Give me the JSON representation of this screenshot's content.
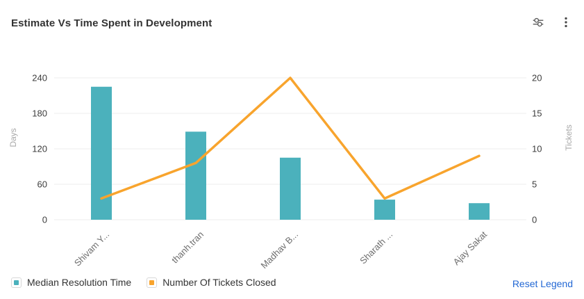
{
  "header": {
    "title": "Estimate Vs Time Spent in Development",
    "icons": [
      {
        "name": "filter-sliders-icon"
      },
      {
        "name": "kebab-menu-icon"
      }
    ]
  },
  "chart_data": {
    "type": "bar+line",
    "title": "Estimate Vs Time Spent in Development",
    "categories": [
      "Shivam Y...",
      "thanh.tran",
      "Madhav B...",
      "Sharath ...",
      "Ajay Sakat"
    ],
    "series": [
      {
        "name": "Median Resolution Time",
        "type": "bar",
        "axis": "left",
        "color": "#4bb1bc",
        "values": [
          225,
          149,
          105,
          34,
          28
        ]
      },
      {
        "name": "Number Of Tickets Closed",
        "type": "line",
        "axis": "right",
        "color": "#f8a42d",
        "values": [
          3,
          8,
          20,
          3,
          9
        ]
      }
    ],
    "left_axis": {
      "label": "Days",
      "min": 0,
      "max": 240,
      "ticks": [
        0,
        60,
        120,
        180,
        240
      ]
    },
    "right_axis": {
      "label": "Tickets",
      "min": 0,
      "max": 20,
      "ticks": [
        0,
        5,
        10,
        15,
        20
      ]
    },
    "grid": true,
    "legend_position": "bottom-left"
  },
  "legend": {
    "items": [
      {
        "label": "Median Resolution Time",
        "color": "#4bb1bc"
      },
      {
        "label": "Number Of Tickets Closed",
        "color": "#f8a42d"
      }
    ],
    "reset_label": "Reset Legend"
  },
  "colors": {
    "bar": "#4bb1bc",
    "line": "#f8a42d",
    "link": "#2368d4",
    "title_text": "#333333",
    "axis_tick_text": "#3d3d3d",
    "category_text": "#6e6e6e",
    "axis_name_text": "#a8a8a8",
    "gridline": "#ececec",
    "icon": "#5a5a5a"
  }
}
